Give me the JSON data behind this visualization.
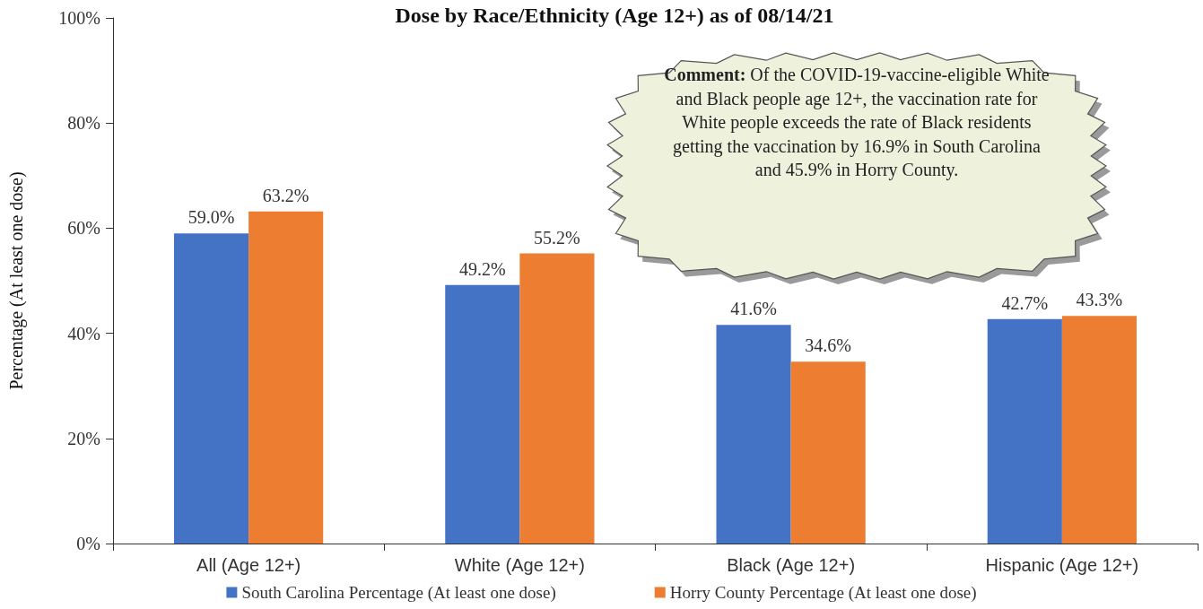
{
  "chart_data": {
    "type": "bar",
    "title": "Dose by Race/Ethnicity (Age 12+) as of 08/14/21",
    "ylabel": "Percentage (At least one dose)",
    "categories": [
      "All (Age 12+)",
      "White (Age 12+)",
      "Black (Age 12+)",
      "Hispanic (Age 12+)"
    ],
    "series": [
      {
        "name": "South Carolina Percentage (At least one dose)",
        "color": "#4472c4",
        "values": [
          59.0,
          49.2,
          41.6,
          42.7
        ],
        "value_labels": [
          "59.0%",
          "49.2%",
          "41.6%",
          "42.7%"
        ]
      },
      {
        "name": "Horry County Percentage (At least one dose)",
        "color": "#ed7d31",
        "values": [
          63.2,
          55.2,
          34.6,
          43.3
        ],
        "value_labels": [
          "63.2%",
          "55.2%",
          "34.6%",
          "43.3%"
        ]
      }
    ],
    "ylim": [
      0,
      100
    ],
    "yticks": [
      {
        "value": 0,
        "label": "0%"
      },
      {
        "value": 20,
        "label": "20%"
      },
      {
        "value": 40,
        "label": "40%"
      },
      {
        "value": 60,
        "label": "60%"
      },
      {
        "value": 80,
        "label": "80%"
      },
      {
        "value": 100,
        "label": "100%"
      }
    ],
    "grid": false,
    "legend": "bottom",
    "annotations": [
      "Comment: Of the COVID-19-vaccine-eligible White and Black people age 12+, the vaccination rate for White people exceeds the rate of Black residents getting the vaccination by 16.9% in South Carolina and 45.9% in Horry County."
    ]
  }
}
